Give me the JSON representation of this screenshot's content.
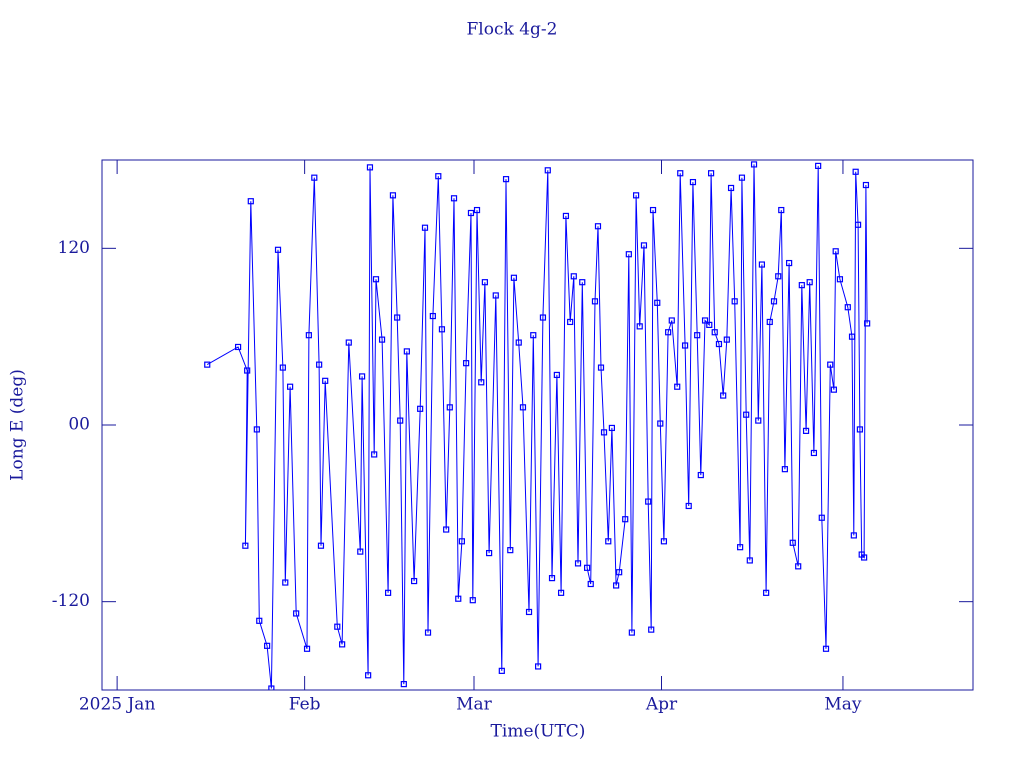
{
  "chart_data": {
    "type": "line",
    "title": "Flock 4g-2",
    "xlabel": "Time(UTC)",
    "ylabel": "Long E (deg)",
    "color": "#0000ff",
    "axis_color": "#1a1a9c",
    "marker": "square",
    "xlim": [
      -2.5,
      141.5
    ],
    "xticks": [
      {
        "value": 0,
        "label": "2025 Jan"
      },
      {
        "value": 31,
        "label": "Feb"
      },
      {
        "value": 59,
        "label": "Mar"
      },
      {
        "value": 90,
        "label": "Apr"
      },
      {
        "value": 120,
        "label": "May"
      }
    ],
    "ylim": [
      -180,
      180
    ],
    "yticks": [
      -120,
      {
        "value": 0,
        "label": "00"
      },
      120
    ],
    "x": [
      14.9,
      20.0,
      21.5,
      21.2,
      22.1,
      23.1,
      23.5,
      24.8,
      25.5,
      26.6,
      27.4,
      27.8,
      28.6,
      29.6,
      31.4,
      31.7,
      32.6,
      33.4,
      33.7,
      34.4,
      36.4,
      37.2,
      38.3,
      40.2,
      40.5,
      41.5,
      41.8,
      42.5,
      42.8,
      43.8,
      44.8,
      45.6,
      46.3,
      46.8,
      47.4,
      47.9,
      49.1,
      50.1,
      50.9,
      51.4,
      52.2,
      53.1,
      53.7,
      54.4,
      55.0,
      55.7,
      56.4,
      57.0,
      57.7,
      58.5,
      58.8,
      59.5,
      60.2,
      60.8,
      61.5,
      62.6,
      63.6,
      64.3,
      65.0,
      65.6,
      66.4,
      67.1,
      68.1,
      68.8,
      69.6,
      70.4,
      71.2,
      71.9,
      72.7,
      73.4,
      74.2,
      74.9,
      75.5,
      76.2,
      76.9,
      77.7,
      78.3,
      79.0,
      79.5,
      80.0,
      80.5,
      81.2,
      81.8,
      82.5,
      83.0,
      84.0,
      84.6,
      85.1,
      85.8,
      86.4,
      87.1,
      87.8,
      88.3,
      88.6,
      89.3,
      89.8,
      90.4,
      91.1,
      91.7,
      92.6,
      93.1,
      93.9,
      94.5,
      95.2,
      95.9,
      96.5,
      97.2,
      97.9,
      98.2,
      98.8,
      99.5,
      100.2,
      100.8,
      101.5,
      102.1,
      103.0,
      103.3,
      104.0,
      104.6,
      105.3,
      106.0,
      106.6,
      107.3,
      107.9,
      108.6,
      109.3,
      109.8,
      110.4,
      111.1,
      111.7,
      112.6,
      113.2,
      113.9,
      114.5,
      115.2,
      115.9,
      116.5,
      117.2,
      117.9,
      118.5,
      118.8,
      119.5,
      120.8,
      121.5,
      121.8,
      122.1,
      122.5,
      122.8,
      123.1,
      123.5,
      123.8,
      124.0
    ],
    "values": [
      41,
      53,
      37,
      -82,
      152,
      -3,
      -133,
      -150,
      -179,
      119,
      39,
      -107,
      26,
      -128,
      -152,
      61,
      168,
      41,
      -82,
      30,
      -137,
      -149,
      56,
      -86,
      33,
      -170,
      175,
      -20,
      99,
      58,
      -114,
      156,
      73,
      3,
      -176,
      50,
      -106,
      11,
      134,
      -141,
      74,
      169,
      65,
      -71,
      12,
      154,
      -118,
      -79,
      42,
      144,
      -119,
      146,
      29,
      97,
      -87,
      88,
      -167,
      167,
      -85,
      100,
      56,
      12,
      -127,
      61,
      -164,
      73,
      173,
      -104,
      34,
      -114,
      142,
      70,
      101,
      -94,
      97,
      -97,
      -108,
      84,
      135,
      39,
      -5,
      -79,
      -2,
      -109,
      -100,
      -64,
      116,
      -141,
      156,
      67,
      122,
      -52,
      -139,
      146,
      83,
      1,
      -79,
      63,
      71,
      26,
      171,
      54,
      -55,
      165,
      61,
      -34,
      71,
      68,
      171,
      63,
      55,
      20,
      58,
      161,
      84,
      -83,
      168,
      7,
      -92,
      177,
      3,
      109,
      -114,
      70,
      84,
      101,
      146,
      -30,
      110,
      -80,
      -96,
      95,
      -4,
      97,
      -19,
      176,
      -63,
      -152,
      41,
      24,
      118,
      99,
      80,
      60,
      -75,
      172,
      136,
      -3,
      -88,
      -90,
      163,
      69
    ]
  }
}
